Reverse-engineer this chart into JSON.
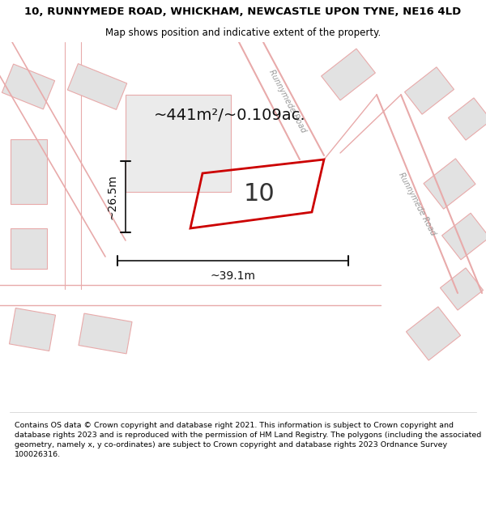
{
  "title_line1": "10, RUNNYMEDE ROAD, WHICKHAM, NEWCASTLE UPON TYNE, NE16 4LD",
  "title_line2": "Map shows position and indicative extent of the property.",
  "area_label": "~441m²/~0.109ac.",
  "number_label": "10",
  "width_label": "~39.1m",
  "height_label": "~26.5m",
  "footer_text": "Contains OS data © Crown copyright and database right 2021. This information is subject to Crown copyright and database rights 2023 and is reproduced with the permission of HM Land Registry. The polygons (including the associated geometry, namely x, y co-ordinates) are subject to Crown copyright and database rights 2023 Ordnance Survey 100026316.",
  "bg_color": "#ffffff",
  "map_bg": "#f2f2f2",
  "block_color": "#e2e2e2",
  "property_outline_color": "#cc0000",
  "street_line_color": "#e8aaaa",
  "road_label_color": "#999999",
  "title_fontsize": 9.5,
  "subtitle_fontsize": 8.5,
  "footer_fontsize": 6.8
}
